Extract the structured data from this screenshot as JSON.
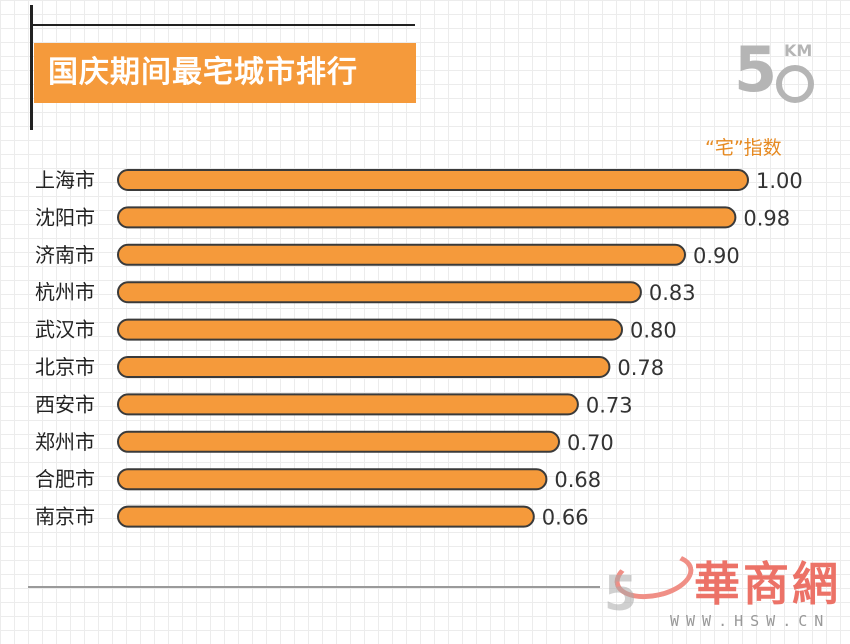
{
  "title": "国庆期间最宅城市排行",
  "unit_label": "“宅”指数",
  "logo": {
    "number": "5",
    "unit": "KM"
  },
  "watermark": {
    "chars": "華商網",
    "url": "WWW.HSW.CN"
  },
  "colors": {
    "bar": "#f59a3b",
    "bar_outline": "#3a3a3a",
    "title_bg": "#f59a3b",
    "accent": "#e68a22"
  },
  "chart_data": {
    "type": "bar",
    "orientation": "horizontal",
    "title": "国庆期间最宅城市排行",
    "value_label": "“宅”指数",
    "categories": [
      "上海市",
      "沈阳市",
      "济南市",
      "杭州市",
      "武汉市",
      "北京市",
      "西安市",
      "郑州市",
      "合肥市",
      "南京市"
    ],
    "values": [
      1.0,
      0.98,
      0.9,
      0.83,
      0.8,
      0.78,
      0.73,
      0.7,
      0.68,
      0.66
    ],
    "value_labels": [
      "1.00",
      "0.98",
      "0.90",
      "0.83",
      "0.80",
      "0.78",
      "0.73",
      "0.70",
      "0.68",
      "0.66"
    ],
    "xlim": [
      0,
      1.0
    ],
    "grid": false,
    "legend": "none"
  }
}
